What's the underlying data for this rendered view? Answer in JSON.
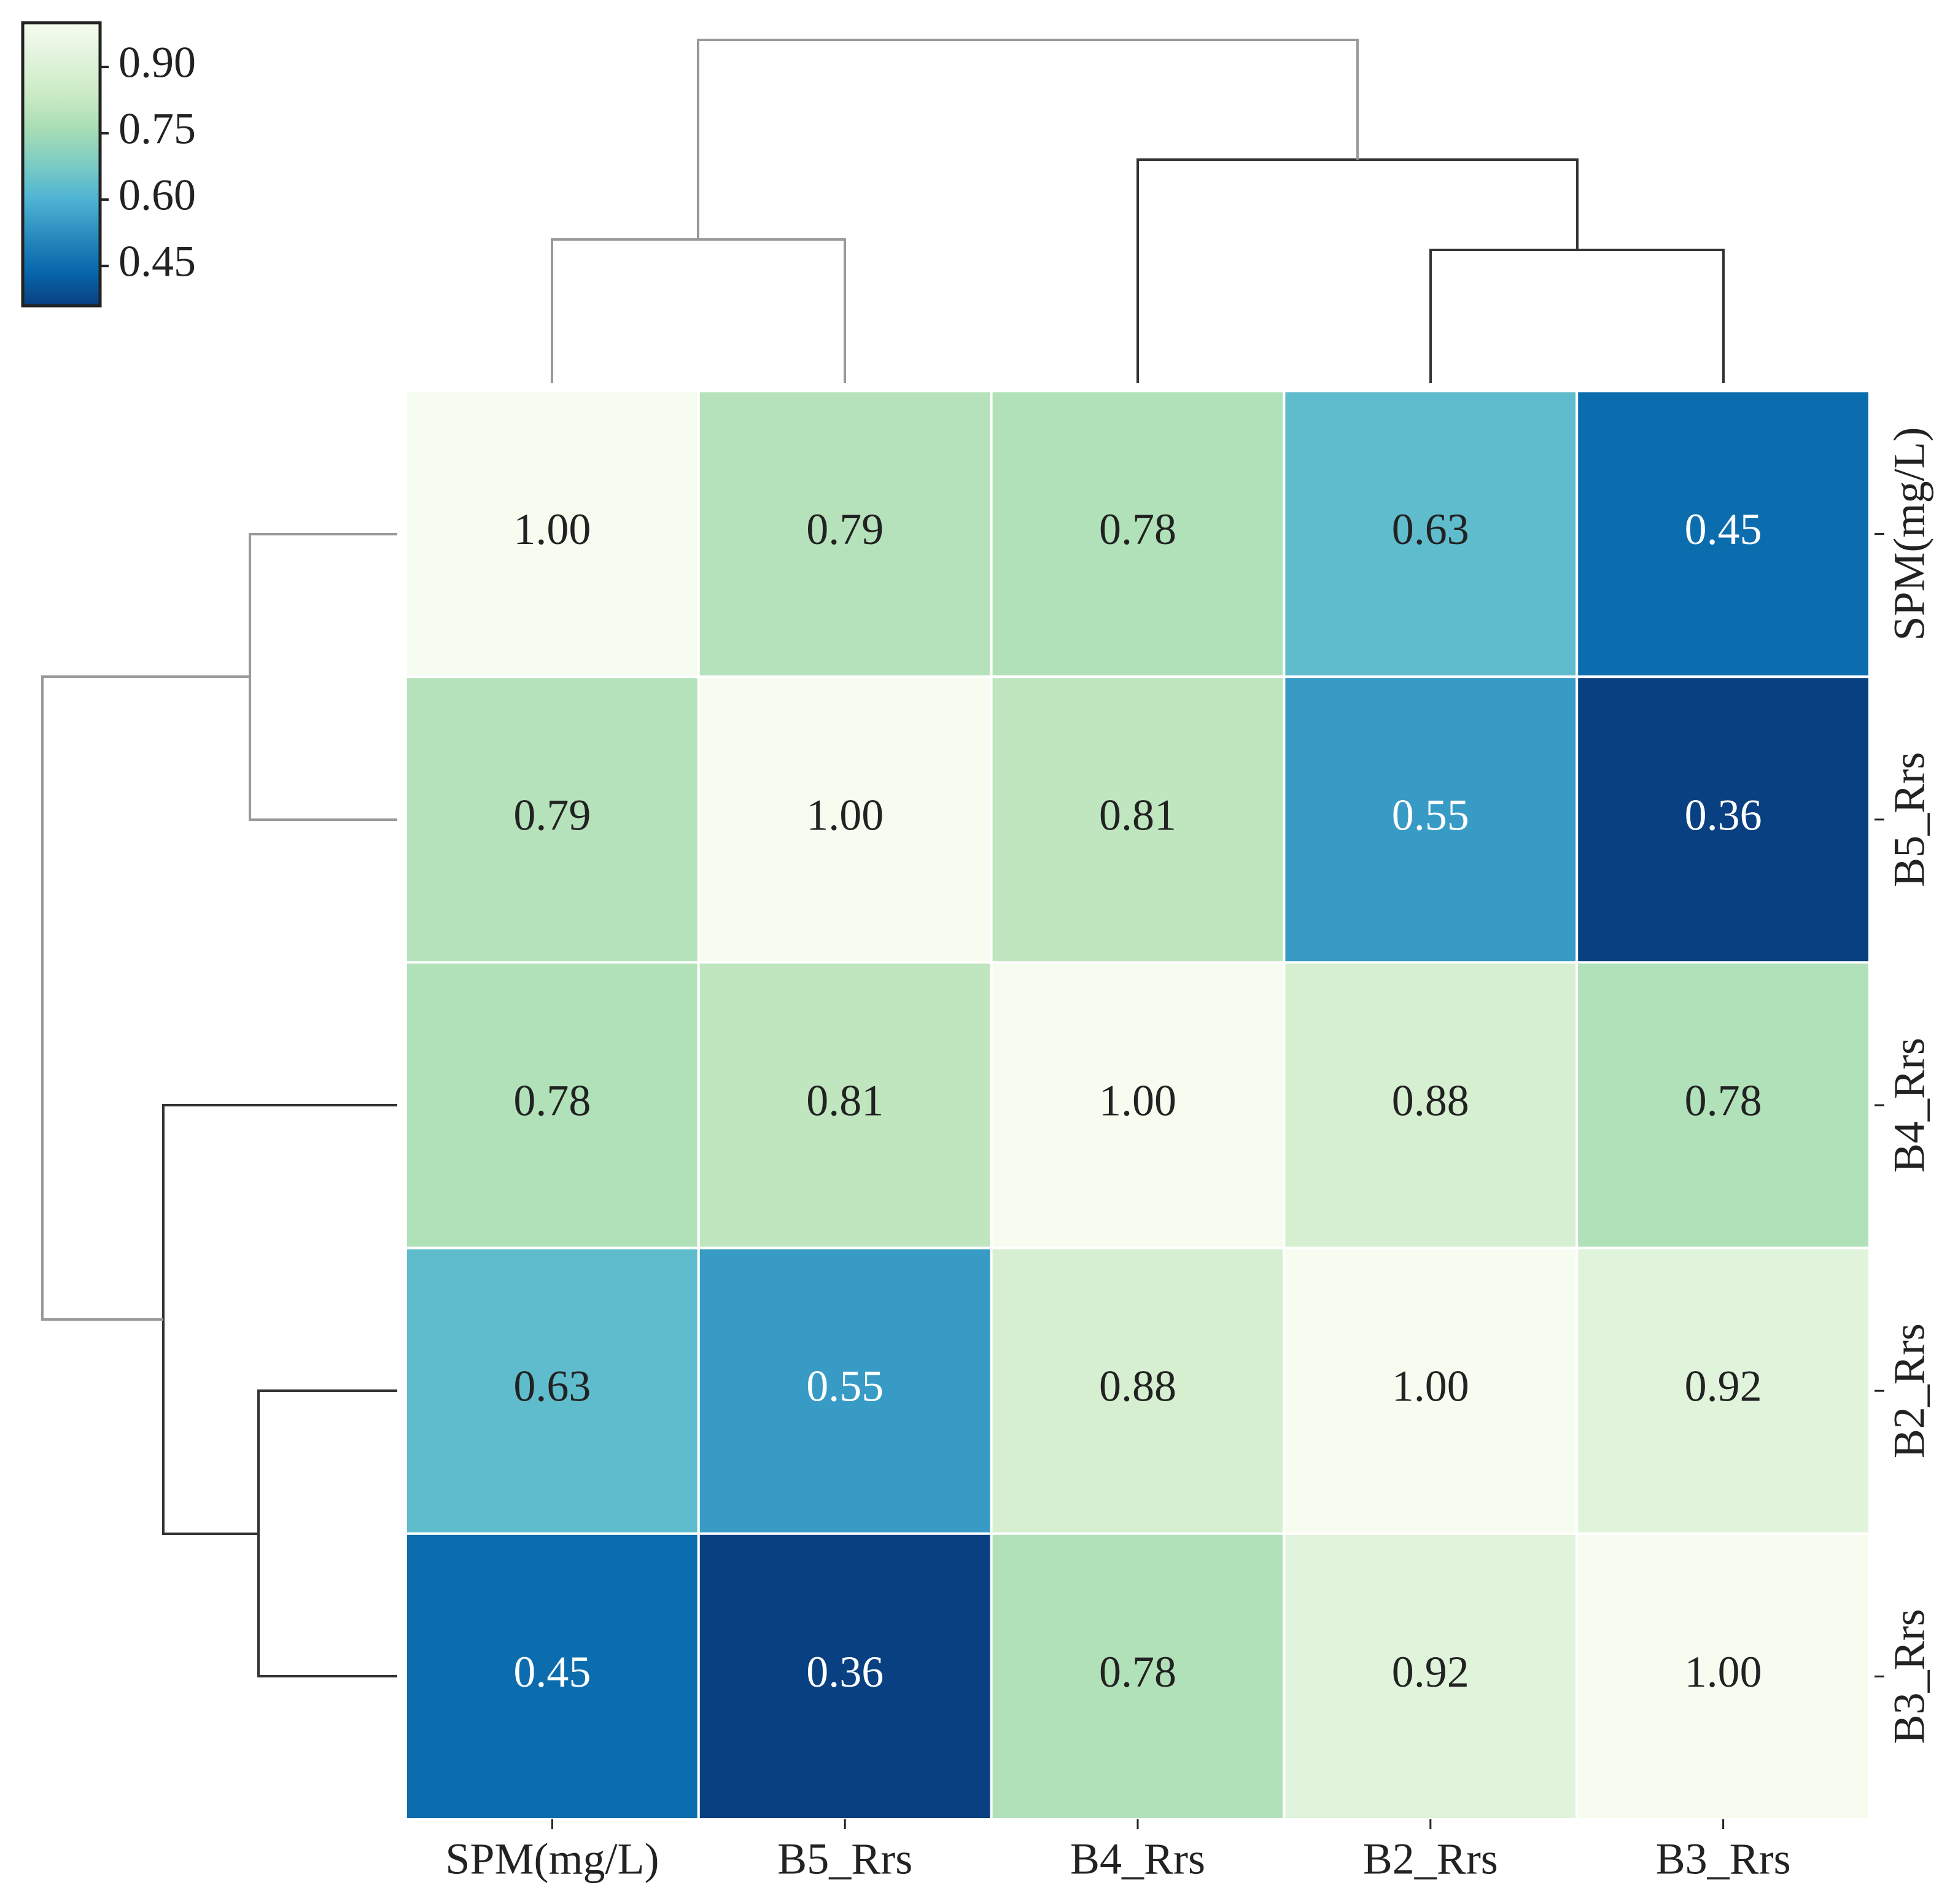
{
  "chart_data": {
    "type": "heatmap",
    "categories": [
      "SPM(mg/L)",
      "B5_Rrs",
      "B4_Rrs",
      "B2_Rrs",
      "B3_Rrs"
    ],
    "rows": [
      "SPM(mg/L)",
      "B5_Rrs",
      "B4_Rrs",
      "B2_Rrs",
      "B3_Rrs"
    ],
    "values": [
      [
        1.0,
        0.79,
        0.78,
        0.63,
        0.45
      ],
      [
        0.79,
        1.0,
        0.81,
        0.55,
        0.36
      ],
      [
        0.78,
        0.81,
        1.0,
        0.88,
        0.78
      ],
      [
        0.63,
        0.55,
        0.88,
        1.0,
        0.92
      ],
      [
        0.45,
        0.36,
        0.78,
        0.92,
        1.0
      ]
    ],
    "value_labels": [
      [
        "1.00",
        "0.79",
        "0.78",
        "0.63",
        "0.45"
      ],
      [
        "0.79",
        "1.00",
        "0.81",
        "0.55",
        "0.36"
      ],
      [
        "0.78",
        "0.81",
        "1.00",
        "0.88",
        "0.78"
      ],
      [
        "0.63",
        "0.55",
        "0.88",
        "1.00",
        "0.92"
      ],
      [
        "0.45",
        "0.36",
        "0.78",
        "0.92",
        "1.00"
      ]
    ],
    "colormap": "GnBu",
    "clim": [
      0.36,
      1.0
    ],
    "cticks": [
      {
        "value": 0.9,
        "label": "0.90"
      },
      {
        "value": 0.75,
        "label": "0.75"
      },
      {
        "value": 0.6,
        "label": "0.60"
      },
      {
        "value": 0.45,
        "label": "0.45"
      }
    ]
  }
}
